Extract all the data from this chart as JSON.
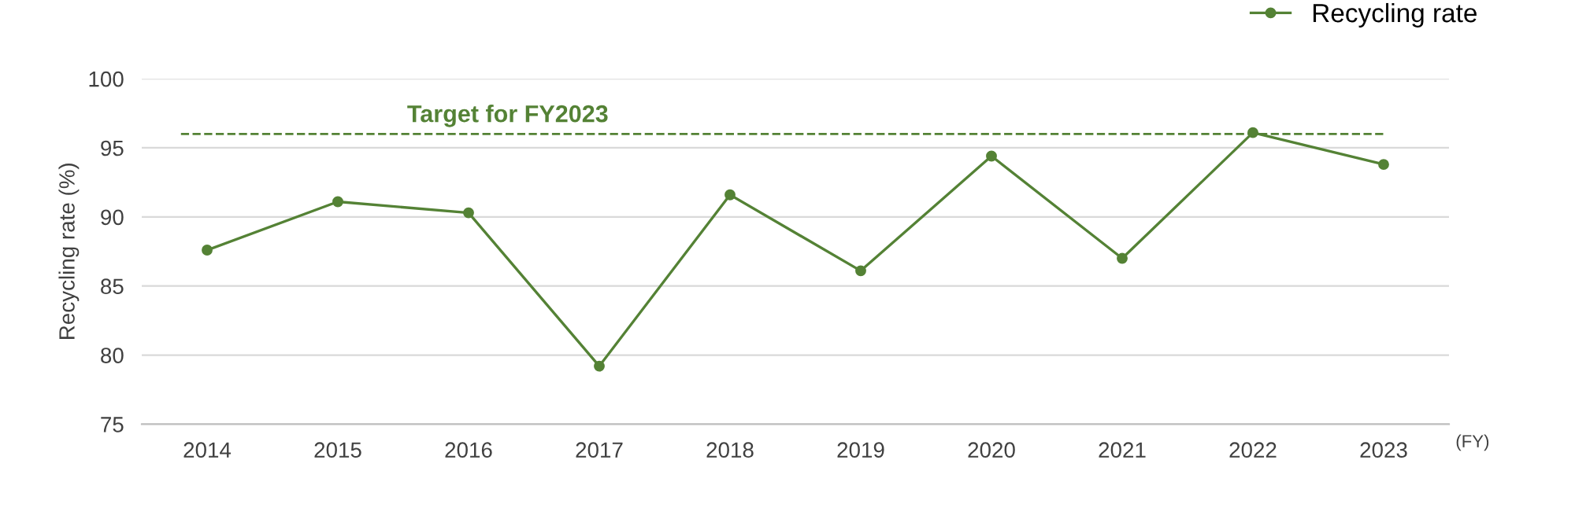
{
  "chart_data": {
    "type": "line",
    "categories": [
      "2014",
      "2015",
      "2016",
      "2017",
      "2018",
      "2019",
      "2020",
      "2021",
      "2022",
      "2023"
    ],
    "series": [
      {
        "name": "Recycling rate",
        "color": "#548235",
        "values": [
          87.6,
          91.1,
          90.3,
          79.2,
          91.6,
          86.1,
          94.4,
          87.0,
          96.1,
          93.8
        ]
      }
    ],
    "xlabel": "(FY)",
    "ylabel": "Recycling rate (%)",
    "ylim": [
      75,
      100
    ],
    "yticks": [
      75,
      80,
      85,
      90,
      95,
      100
    ],
    "ref_lines": [
      {
        "axis": "y",
        "value": 96,
        "label": "Target for FY2023",
        "color": "#548235",
        "line_style": "dashed"
      }
    ],
    "grid": "y",
    "legend": "top right",
    "marker": "circle",
    "line_style": "solid"
  }
}
